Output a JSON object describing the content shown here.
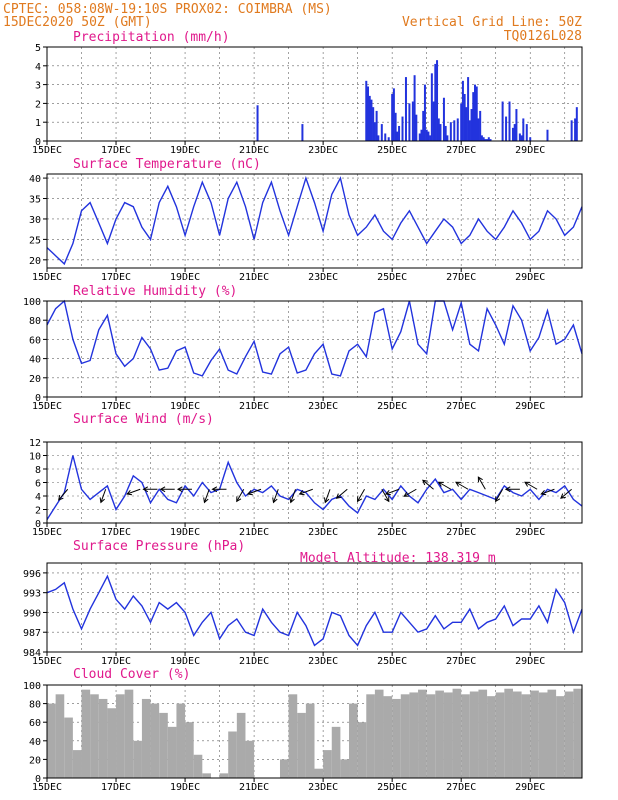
{
  "header": {
    "line1_left": "CPTEC:  058:08W-19:10S  PROX02: COIMBRA (MS)",
    "line2_left": "15DEC2020 50Z (GMT)",
    "line2_right": "Vertical Grid Line: 50Z",
    "line3_right": "TQ0126L028",
    "model_altitude": "Model Altitude: 138.319 m"
  },
  "colors": {
    "header": "#e07a1f",
    "title": "#e0198c",
    "series": "#2233dd",
    "cloud": "#aaaaaa",
    "wind_arrow": "#000000"
  },
  "chart_data": [
    {
      "type": "bar",
      "title": "Precipitation (mm/h)",
      "xlim": [
        0,
        15.5
      ],
      "ylim": [
        0,
        5
      ],
      "yticks": [
        0,
        1,
        2,
        3,
        4,
        5
      ],
      "xtick_labels": [
        "15DEC",
        "17DEC",
        "19DEC",
        "21DEC",
        "23DEC",
        "25DEC",
        "27DEC",
        "29DEC"
      ],
      "x": [
        6.1,
        7.4,
        9.25,
        9.3,
        9.35,
        9.4,
        9.45,
        9.5,
        9.55,
        9.6,
        9.7,
        9.8,
        9.9,
        10.0,
        10.05,
        10.1,
        10.15,
        10.2,
        10.3,
        10.4,
        10.5,
        10.6,
        10.65,
        10.7,
        10.8,
        10.85,
        10.9,
        10.95,
        11.0,
        11.05,
        11.1,
        11.15,
        11.2,
        11.25,
        11.3,
        11.35,
        11.4,
        11.5,
        11.55,
        11.6,
        11.7,
        11.8,
        11.9,
        12.0,
        12.05,
        12.1,
        12.15,
        12.2,
        12.25,
        12.3,
        12.35,
        12.4,
        12.45,
        12.5,
        12.55,
        12.6,
        12.65,
        12.7,
        12.75,
        12.8,
        12.85,
        13.2,
        13.3,
        13.4,
        13.5,
        13.55,
        13.6,
        13.7,
        13.75,
        13.8,
        13.9,
        14.0,
        14.5,
        15.2,
        15.3,
        15.35
      ],
      "values": [
        1.9,
        0.9,
        3.2,
        2.9,
        2.4,
        2.2,
        1.8,
        1.0,
        1.6,
        0.3,
        0.9,
        0.4,
        0.2,
        2.5,
        2.8,
        1.5,
        0.5,
        0.8,
        1.3,
        3.4,
        2.0,
        2.1,
        3.5,
        1.4,
        0.4,
        0.6,
        1.6,
        3.0,
        0.6,
        0.5,
        0.3,
        3.6,
        2.1,
        4.1,
        4.3,
        1.2,
        0.9,
        2.3,
        0.8,
        0.3,
        1.0,
        1.1,
        1.2,
        2.0,
        3.2,
        2.5,
        1.8,
        3.4,
        1.1,
        1.7,
        2.6,
        3.0,
        2.9,
        1.2,
        1.6,
        0.3,
        0.2,
        0.1,
        0.1,
        0.2,
        0.1,
        2.1,
        1.3,
        2.1,
        0.7,
        0.9,
        1.7,
        0.4,
        0.3,
        1.2,
        0.9,
        0.2,
        0.6,
        1.1,
        1.2,
        1.8
      ]
    },
    {
      "type": "line",
      "title": "Surface Temperature (nC)",
      "xlim": [
        0,
        15.5
      ],
      "ylim": [
        18,
        41
      ],
      "yticks": [
        20,
        25,
        30,
        35,
        40
      ],
      "xtick_labels": [
        "15DEC",
        "17DEC",
        "19DEC",
        "21DEC",
        "23DEC",
        "25DEC",
        "27DEC",
        "29DEC"
      ],
      "x": [
        0,
        0.25,
        0.5,
        0.75,
        1.0,
        1.25,
        1.5,
        1.75,
        2.0,
        2.25,
        2.5,
        2.75,
        3.0,
        3.25,
        3.5,
        3.75,
        4.0,
        4.25,
        4.5,
        4.75,
        5.0,
        5.25,
        5.5,
        5.75,
        6.0,
        6.25,
        6.5,
        6.75,
        7.0,
        7.25,
        7.5,
        7.75,
        8.0,
        8.25,
        8.5,
        8.75,
        9.0,
        9.25,
        9.5,
        9.75,
        10.0,
        10.25,
        10.5,
        10.75,
        11.0,
        11.25,
        11.5,
        11.75,
        12.0,
        12.25,
        12.5,
        12.75,
        13.0,
        13.25,
        13.5,
        13.75,
        14.0,
        14.25,
        14.5,
        14.75,
        15.0,
        15.25,
        15.5
      ],
      "values": [
        23,
        21,
        19,
        24,
        32,
        34,
        29,
        24,
        30,
        34,
        33,
        28,
        25,
        34,
        38,
        33,
        26,
        33,
        39,
        34,
        26,
        35,
        39,
        33,
        25,
        34,
        39,
        32,
        26,
        33,
        40,
        34,
        27,
        36,
        40,
        31,
        26,
        28,
        31,
        27,
        25,
        29,
        32,
        28,
        24,
        27,
        30,
        28,
        24,
        26,
        30,
        27,
        25,
        28,
        32,
        29,
        25,
        27,
        32,
        30,
        26,
        28,
        33
      ]
    },
    {
      "type": "line",
      "title": "Relative Humidity (%)",
      "xlim": [
        0,
        15.5
      ],
      "ylim": [
        0,
        100
      ],
      "yticks": [
        0,
        20,
        40,
        60,
        80,
        100
      ],
      "xtick_labels": [
        "15DEC",
        "17DEC",
        "19DEC",
        "21DEC",
        "23DEC",
        "25DEC",
        "27DEC",
        "29DEC"
      ],
      "x": [
        0,
        0.25,
        0.5,
        0.75,
        1.0,
        1.25,
        1.5,
        1.75,
        2.0,
        2.25,
        2.5,
        2.75,
        3.0,
        3.25,
        3.5,
        3.75,
        4.0,
        4.25,
        4.5,
        4.75,
        5.0,
        5.25,
        5.5,
        5.75,
        6.0,
        6.25,
        6.5,
        6.75,
        7.0,
        7.25,
        7.5,
        7.75,
        8.0,
        8.25,
        8.5,
        8.75,
        9.0,
        9.25,
        9.5,
        9.75,
        10.0,
        10.25,
        10.5,
        10.75,
        11.0,
        11.25,
        11.5,
        11.75,
        12.0,
        12.25,
        12.5,
        12.75,
        13.0,
        13.25,
        13.5,
        13.75,
        14.0,
        14.25,
        14.5,
        14.75,
        15.0,
        15.25,
        15.5
      ],
      "values": [
        75,
        92,
        100,
        60,
        35,
        38,
        70,
        85,
        45,
        32,
        40,
        62,
        50,
        28,
        30,
        48,
        52,
        25,
        22,
        38,
        50,
        28,
        24,
        42,
        58,
        26,
        24,
        45,
        52,
        25,
        28,
        45,
        55,
        24,
        22,
        48,
        55,
        42,
        88,
        92,
        50,
        68,
        100,
        55,
        45,
        100,
        100,
        70,
        98,
        55,
        48,
        92,
        75,
        55,
        95,
        80,
        48,
        62,
        90,
        55,
        60,
        75,
        45
      ]
    },
    {
      "type": "line",
      "title": "Surface Wind (m/s)",
      "xlim": [
        0,
        15.5
      ],
      "ylim": [
        0,
        12
      ],
      "yticks": [
        0,
        2,
        4,
        6,
        8,
        10,
        12
      ],
      "xtick_labels": [
        "15DEC",
        "17DEC",
        "19DEC",
        "21DEC",
        "23DEC",
        "25DEC",
        "27DEC",
        "29DEC"
      ],
      "x": [
        0,
        0.25,
        0.5,
        0.75,
        1.0,
        1.25,
        1.5,
        1.75,
        2.0,
        2.25,
        2.5,
        2.75,
        3.0,
        3.25,
        3.5,
        3.75,
        4.0,
        4.25,
        4.5,
        4.75,
        5.0,
        5.25,
        5.5,
        5.75,
        6.0,
        6.25,
        6.5,
        6.75,
        7.0,
        7.25,
        7.5,
        7.75,
        8.0,
        8.25,
        8.5,
        8.75,
        9.0,
        9.25,
        9.5,
        9.75,
        10.0,
        10.25,
        10.5,
        10.75,
        11.0,
        11.25,
        11.5,
        11.75,
        12.0,
        12.25,
        12.5,
        12.75,
        13.0,
        13.25,
        13.5,
        13.75,
        14.0,
        14.25,
        14.5,
        14.75,
        15.0,
        15.25,
        15.5
      ],
      "values": [
        0.5,
        2.5,
        4.5,
        10,
        5,
        3.5,
        4.5,
        5.5,
        2,
        4,
        7,
        6,
        3,
        5,
        3.5,
        3,
        5.5,
        4,
        6,
        4.5,
        5,
        9,
        6,
        4,
        5,
        4.5,
        5.5,
        4,
        3.5,
        5,
        4.5,
        3,
        2,
        3.5,
        4,
        2.5,
        1.5,
        4,
        3.5,
        5,
        3.5,
        5.5,
        4,
        3,
        5,
        6.5,
        4.5,
        5,
        3.5,
        5,
        4.5,
        4,
        3.5,
        5.5,
        4.5,
        4,
        5,
        3.5,
        5,
        4.5,
        5.5,
        3.5,
        2.5
      ]
    },
    {
      "type": "line",
      "title": "Surface Pressure (hPa)",
      "xlim": [
        0,
        15.5
      ],
      "ylim": [
        984,
        997.5
      ],
      "yticks": [
        984,
        987,
        990,
        993,
        996
      ],
      "xtick_labels": [
        "15DEC",
        "17DEC",
        "19DEC",
        "21DEC",
        "23DEC",
        "25DEC",
        "27DEC",
        "29DEC"
      ],
      "x": [
        0,
        0.25,
        0.5,
        0.75,
        1.0,
        1.25,
        1.5,
        1.75,
        2.0,
        2.25,
        2.5,
        2.75,
        3.0,
        3.25,
        3.5,
        3.75,
        4.0,
        4.25,
        4.5,
        4.75,
        5.0,
        5.25,
        5.5,
        5.75,
        6.0,
        6.25,
        6.5,
        6.75,
        7.0,
        7.25,
        7.5,
        7.75,
        8.0,
        8.25,
        8.5,
        8.75,
        9.0,
        9.25,
        9.5,
        9.75,
        10.0,
        10.25,
        10.5,
        10.75,
        11.0,
        11.25,
        11.5,
        11.75,
        12.0,
        12.25,
        12.5,
        12.75,
        13.0,
        13.25,
        13.5,
        13.75,
        14.0,
        14.25,
        14.5,
        14.75,
        15.0,
        15.25,
        15.5
      ],
      "values": [
        993,
        993.5,
        994.5,
        990.5,
        987.5,
        990.5,
        993,
        995.5,
        992,
        990.5,
        992.5,
        991,
        988.5,
        991.5,
        990.5,
        991.5,
        990,
        986.5,
        988.5,
        990,
        986,
        988,
        989,
        987,
        986.5,
        990.5,
        988.5,
        987,
        986.5,
        990,
        988,
        985,
        986,
        990,
        989.5,
        986.5,
        985,
        988,
        990,
        987,
        987,
        990,
        988.5,
        987,
        987.5,
        989.5,
        987.5,
        988.5,
        988.5,
        990.5,
        987.5,
        988.5,
        989,
        991,
        988,
        989,
        989,
        991,
        988.5,
        993.5,
        991.5,
        987,
        990.5
      ]
    },
    {
      "type": "area",
      "title": "Cloud Cover (%)",
      "xlim": [
        0,
        15.5
      ],
      "ylim": [
        0,
        100
      ],
      "yticks": [
        0,
        20,
        40,
        60,
        80,
        100
      ],
      "xtick_labels": [
        "15DEC",
        "17DEC",
        "19DEC",
        "21DEC",
        "23DEC",
        "25DEC",
        "27DEC",
        "29DEC"
      ],
      "x": [
        0,
        0.25,
        0.5,
        0.75,
        1.0,
        1.25,
        1.5,
        1.75,
        2.0,
        2.25,
        2.5,
        2.75,
        3.0,
        3.25,
        3.5,
        3.75,
        4.0,
        4.25,
        4.5,
        4.75,
        5.0,
        5.25,
        5.5,
        5.75,
        6.0,
        6.25,
        6.5,
        6.75,
        7.0,
        7.25,
        7.5,
        7.75,
        8.0,
        8.25,
        8.5,
        8.75,
        9.0,
        9.25,
        9.5,
        9.75,
        10.0,
        10.25,
        10.5,
        10.75,
        11.0,
        11.25,
        11.5,
        11.75,
        12.0,
        12.25,
        12.5,
        12.75,
        13.0,
        13.25,
        13.5,
        13.75,
        14.0,
        14.25,
        14.5,
        14.75,
        15.0,
        15.25,
        15.5
      ],
      "values": [
        80,
        90,
        65,
        30,
        95,
        90,
        85,
        75,
        90,
        95,
        40,
        85,
        80,
        70,
        55,
        80,
        60,
        25,
        5,
        0,
        5,
        50,
        70,
        40,
        0,
        0,
        0,
        20,
        90,
        70,
        80,
        10,
        30,
        55,
        20,
        80,
        60,
        90,
        95,
        88,
        85,
        90,
        92,
        95,
        90,
        94,
        92,
        96,
        90,
        93,
        95,
        88,
        92,
        96,
        93,
        90,
        94,
        92,
        95,
        88,
        93,
        96,
        90
      ]
    }
  ],
  "wind_vectors": {
    "x": [
      0.6,
      1.7,
      2.7,
      3.2,
      3.7,
      4.2,
      4.7,
      5.2,
      5.7,
      6.2,
      6.7,
      7.2,
      7.7,
      8.2,
      8.7,
      9.2,
      9.7,
      10.2,
      10.7,
      11.2,
      11.7,
      12.2,
      12.7,
      13.2,
      13.7,
      14.2,
      14.7,
      15.2
    ],
    "angle_deg": [
      230,
      250,
      200,
      180,
      180,
      180,
      250,
      180,
      240,
      200,
      250,
      250,
      200,
      250,
      220,
      240,
      300,
      200,
      210,
      140,
      150,
      150,
      120,
      240,
      180,
      150,
      200,
      220
    ]
  }
}
